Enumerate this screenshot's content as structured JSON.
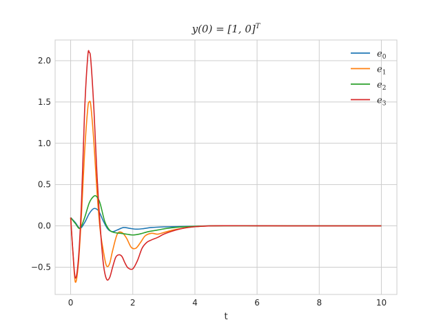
{
  "chart_data": {
    "type": "line",
    "title": "y(0) = [1, 0]",
    "title_superscript": "T",
    "xlabel": "t",
    "ylabel": "",
    "xlim": [
      -0.5,
      10.5
    ],
    "ylim": [
      -0.83,
      2.25
    ],
    "xticks": [
      0,
      2,
      4,
      6,
      8,
      10
    ],
    "yticks": [
      -0.5,
      0.0,
      0.5,
      1.0,
      1.5,
      2.0
    ],
    "ytick_labels": [
      "−0.5",
      "0.0",
      "0.5",
      "1.0",
      "1.5",
      "2.0"
    ],
    "grid": true,
    "legend_position": "top-right",
    "series": [
      {
        "name": "e0",
        "base": "e",
        "sub": "0",
        "color": "#1f77b4",
        "x": [
          0,
          0.15,
          0.3,
          0.45,
          0.6,
          0.75,
          0.9,
          1.05,
          1.2,
          1.35,
          1.5,
          1.7,
          1.9,
          2.1,
          2.3,
          2.6,
          3.0,
          3.5,
          4.0,
          4.5,
          5.0,
          6.0,
          7.0,
          8.0,
          9.0,
          10.0
        ],
        "y": [
          0.1,
          0.04,
          -0.03,
          0.04,
          0.15,
          0.21,
          0.18,
          0.06,
          -0.04,
          -0.07,
          -0.05,
          -0.02,
          -0.03,
          -0.04,
          -0.035,
          -0.02,
          -0.012,
          -0.008,
          -0.005,
          0.0,
          0.002,
          0.001,
          0.0,
          0.0,
          0.0,
          0.0
        ]
      },
      {
        "name": "e1",
        "base": "e",
        "sub": "1",
        "color": "#ff7f0e",
        "x": [
          0,
          0.07,
          0.15,
          0.25,
          0.35,
          0.45,
          0.55,
          0.6,
          0.65,
          0.75,
          0.85,
          0.95,
          1.05,
          1.15,
          1.25,
          1.35,
          1.5,
          1.65,
          1.8,
          1.95,
          2.1,
          2.25,
          2.4,
          2.6,
          2.8,
          3.0,
          3.3,
          3.6,
          4.0,
          4.5,
          5.0,
          6.0,
          7.0,
          8.0,
          9.0,
          10.0
        ],
        "y": [
          0.1,
          -0.3,
          -0.68,
          -0.45,
          0.15,
          0.9,
          1.42,
          1.5,
          1.45,
          1.0,
          0.4,
          -0.05,
          -0.3,
          -0.48,
          -0.46,
          -0.3,
          -0.1,
          -0.08,
          -0.15,
          -0.26,
          -0.27,
          -0.2,
          -0.12,
          -0.09,
          -0.1,
          -0.08,
          -0.05,
          -0.03,
          -0.01,
          0.0,
          0.002,
          0.001,
          0.0,
          0.0,
          0.0,
          0.0
        ]
      },
      {
        "name": "e2",
        "base": "e",
        "sub": "2",
        "color": "#2ca02c",
        "x": [
          0,
          0.15,
          0.3,
          0.45,
          0.6,
          0.75,
          0.85,
          0.95,
          1.1,
          1.25,
          1.4,
          1.6,
          1.8,
          2.0,
          2.2,
          2.5,
          2.8,
          3.1,
          3.5,
          4.0,
          4.5,
          5.0,
          6.0,
          7.0,
          8.0,
          9.0,
          10.0
        ],
        "y": [
          0.1,
          0.03,
          -0.03,
          0.1,
          0.28,
          0.36,
          0.35,
          0.27,
          0.05,
          -0.05,
          -0.08,
          -0.09,
          -0.1,
          -0.11,
          -0.1,
          -0.07,
          -0.05,
          -0.03,
          -0.015,
          -0.005,
          0.0,
          0.001,
          0.001,
          0.0,
          0.0,
          0.0,
          0.0
        ]
      },
      {
        "name": "e3",
        "base": "e",
        "sub": "3",
        "color": "#d62728",
        "x": [
          0,
          0.07,
          0.15,
          0.25,
          0.35,
          0.45,
          0.55,
          0.6,
          0.65,
          0.75,
          0.85,
          0.95,
          1.05,
          1.15,
          1.25,
          1.35,
          1.45,
          1.55,
          1.65,
          1.75,
          1.85,
          2.0,
          2.15,
          2.3,
          2.45,
          2.6,
          2.8,
          3.0,
          3.3,
          3.6,
          4.0,
          4.5,
          5.0,
          6.0,
          7.0,
          8.0,
          9.0,
          10.0
        ],
        "y": [
          0.1,
          -0.3,
          -0.63,
          -0.4,
          0.3,
          1.4,
          2.05,
          2.1,
          2.0,
          1.4,
          0.6,
          0.0,
          -0.45,
          -0.64,
          -0.63,
          -0.5,
          -0.38,
          -0.35,
          -0.37,
          -0.45,
          -0.51,
          -0.52,
          -0.42,
          -0.27,
          -0.2,
          -0.17,
          -0.14,
          -0.1,
          -0.06,
          -0.03,
          -0.01,
          0.0,
          0.002,
          0.001,
          0.0,
          0.0,
          0.0,
          0.0
        ]
      }
    ]
  }
}
